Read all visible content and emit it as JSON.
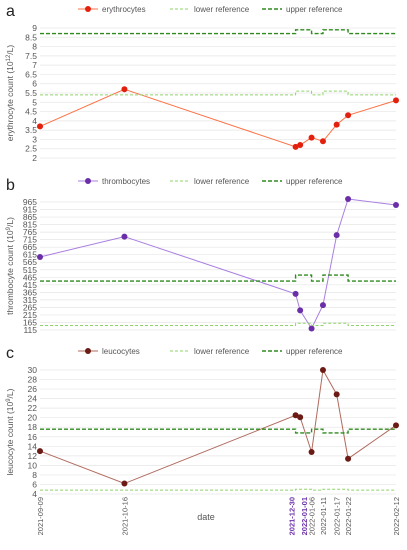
{
  "chart_data": [
    {
      "type": "line",
      "panel": "a",
      "ylabel": "erythrocyte count (10^12/L)",
      "ylabel_parts": [
        "erythrocyte count (10",
        "12",
        "/L)"
      ],
      "ylim": [
        2,
        9
      ],
      "yticks": [
        "2",
        "2.5",
        "3",
        "3.5",
        "4",
        "4.5",
        "5",
        "5.5",
        "6",
        "6.5",
        "7",
        "7.5",
        "8",
        "8.5",
        "9"
      ],
      "series": [
        {
          "name": "erythrocytes",
          "color": "#ff7043",
          "marker_color": "#e3200e",
          "points": [
            [
              "2021-09-09",
              3.7
            ],
            [
              "2021-10-16",
              5.7
            ],
            [
              "2021-12-30",
              2.6
            ],
            [
              "2022-01-01",
              2.7
            ],
            [
              "2022-01-06",
              3.1
            ],
            [
              "2022-01-11",
              2.9
            ],
            [
              "2022-01-17",
              3.8
            ],
            [
              "2022-01-22",
              4.3
            ],
            [
              "2022-02-12",
              5.1
            ]
          ]
        },
        {
          "name": "lower reference",
          "color": "#8fd46a",
          "points": [
            [
              "2021-09-09",
              5.4
            ],
            [
              "2021-12-30",
              5.4
            ],
            [
              "2021-12-30",
              5.6
            ],
            [
              "2022-01-06",
              5.6
            ],
            [
              "2022-01-06",
              5.4
            ],
            [
              "2022-01-11",
              5.4
            ],
            [
              "2022-01-11",
              5.6
            ],
            [
              "2022-01-22",
              5.6
            ],
            [
              "2022-01-22",
              5.4
            ],
            [
              "2022-02-12",
              5.4
            ]
          ]
        },
        {
          "name": "upper reference",
          "color": "#2e8b1e",
          "points": [
            [
              "2021-09-09",
              8.7
            ],
            [
              "2021-12-30",
              8.7
            ],
            [
              "2021-12-30",
              8.9
            ],
            [
              "2022-01-06",
              8.9
            ],
            [
              "2022-01-06",
              8.7
            ],
            [
              "2022-01-11",
              8.7
            ],
            [
              "2022-01-11",
              8.9
            ],
            [
              "2022-01-22",
              8.9
            ],
            [
              "2022-01-22",
              8.7
            ],
            [
              "2022-02-12",
              8.7
            ]
          ]
        }
      ]
    },
    {
      "type": "line",
      "panel": "b",
      "ylabel": "thrombocyte count (10^9/L)",
      "ylabel_parts": [
        "thrombocyte count (10",
        "9",
        "/L)"
      ],
      "ylim": [
        115,
        965
      ],
      "yticks": [
        "115",
        "165",
        "215",
        "265",
        "315",
        "365",
        "415",
        "465",
        "515",
        "565",
        "615",
        "665",
        "715",
        "765",
        "815",
        "865",
        "915",
        "965"
      ],
      "series": [
        {
          "name": "thrombocytes",
          "color": "#a97fe0",
          "marker_color": "#6a2fa8",
          "points": [
            [
              "2021-09-09",
              600
            ],
            [
              "2021-10-16",
              735
            ],
            [
              "2021-12-30",
              355
            ],
            [
              "2022-01-01",
              245
            ],
            [
              "2022-01-06",
              125
            ],
            [
              "2022-01-11",
              280
            ],
            [
              "2022-01-17",
              745
            ],
            [
              "2022-01-22",
              985
            ],
            [
              "2022-02-12",
              945
            ]
          ]
        },
        {
          "name": "lower reference",
          "color": "#8fd46a",
          "points": [
            [
              "2021-09-09",
              145
            ],
            [
              "2021-12-30",
              145
            ],
            [
              "2021-12-30",
              160
            ],
            [
              "2022-01-06",
              160
            ],
            [
              "2022-01-06",
              145
            ],
            [
              "2022-01-11",
              145
            ],
            [
              "2022-01-11",
              160
            ],
            [
              "2022-01-22",
              160
            ],
            [
              "2022-01-22",
              145
            ],
            [
              "2022-02-12",
              145
            ]
          ]
        },
        {
          "name": "upper reference",
          "color": "#2e8b1e",
          "points": [
            [
              "2021-09-09",
              440
            ],
            [
              "2021-12-30",
              440
            ],
            [
              "2021-12-30",
              480
            ],
            [
              "2022-01-06",
              480
            ],
            [
              "2022-01-06",
              440
            ],
            [
              "2022-01-11",
              440
            ],
            [
              "2022-01-11",
              480
            ],
            [
              "2022-01-22",
              480
            ],
            [
              "2022-01-22",
              440
            ],
            [
              "2022-02-12",
              440
            ]
          ]
        }
      ]
    },
    {
      "type": "line",
      "panel": "c",
      "ylabel": "leucocyte count (10^9/L)",
      "ylabel_parts": [
        "leucocyte count (10",
        "9",
        "/L)"
      ],
      "ylim": [
        4,
        30
      ],
      "yticks": [
        "4",
        "6",
        "8",
        "10",
        "12",
        "14",
        "16",
        "18",
        "20",
        "22",
        "24",
        "26",
        "28",
        "30"
      ],
      "xlabel": "date",
      "xticks": [
        "2021-09-09",
        "2021-10-16",
        "2021-12-30",
        "2022-01-01",
        "2022-01-06",
        "2022-01-11",
        "2022-01-17",
        "2022-01-22",
        "2022-02-12"
      ],
      "xticks_highlight": [
        "2021-12-30",
        "2022-01-01"
      ],
      "series": [
        {
          "name": "leucocytes",
          "color": "#b06a5e",
          "marker_color": "#6b1a14",
          "points": [
            [
              "2021-09-09",
              13
            ],
            [
              "2021-10-16",
              6.2
            ],
            [
              "2021-12-30",
              20.5
            ],
            [
              "2022-01-01",
              20.1
            ],
            [
              "2022-01-06",
              12.8
            ],
            [
              "2022-01-11",
              30
            ],
            [
              "2022-01-17",
              24.9
            ],
            [
              "2022-01-22",
              11.4
            ],
            [
              "2022-02-12",
              18.4
            ]
          ]
        },
        {
          "name": "lower reference",
          "color": "#8fd46a",
          "points": [
            [
              "2021-09-09",
              4.8
            ],
            [
              "2021-12-30",
              4.8
            ],
            [
              "2021-12-30",
              5.0
            ],
            [
              "2022-01-06",
              5.0
            ],
            [
              "2022-01-06",
              4.8
            ],
            [
              "2022-01-11",
              4.8
            ],
            [
              "2022-01-11",
              5.0
            ],
            [
              "2022-01-22",
              5.0
            ],
            [
              "2022-01-22",
              4.8
            ],
            [
              "2022-02-12",
              4.8
            ]
          ]
        },
        {
          "name": "upper reference",
          "color": "#2e8b1e",
          "points": [
            [
              "2021-09-09",
              17.6
            ],
            [
              "2021-12-30",
              17.6
            ],
            [
              "2021-12-30",
              16.8
            ],
            [
              "2022-01-06",
              16.8
            ],
            [
              "2022-01-06",
              17.6
            ],
            [
              "2022-01-11",
              17.6
            ],
            [
              "2022-01-11",
              16.8
            ],
            [
              "2022-01-22",
              16.8
            ],
            [
              "2022-01-22",
              17.6
            ],
            [
              "2022-02-12",
              17.6
            ]
          ]
        }
      ]
    }
  ]
}
